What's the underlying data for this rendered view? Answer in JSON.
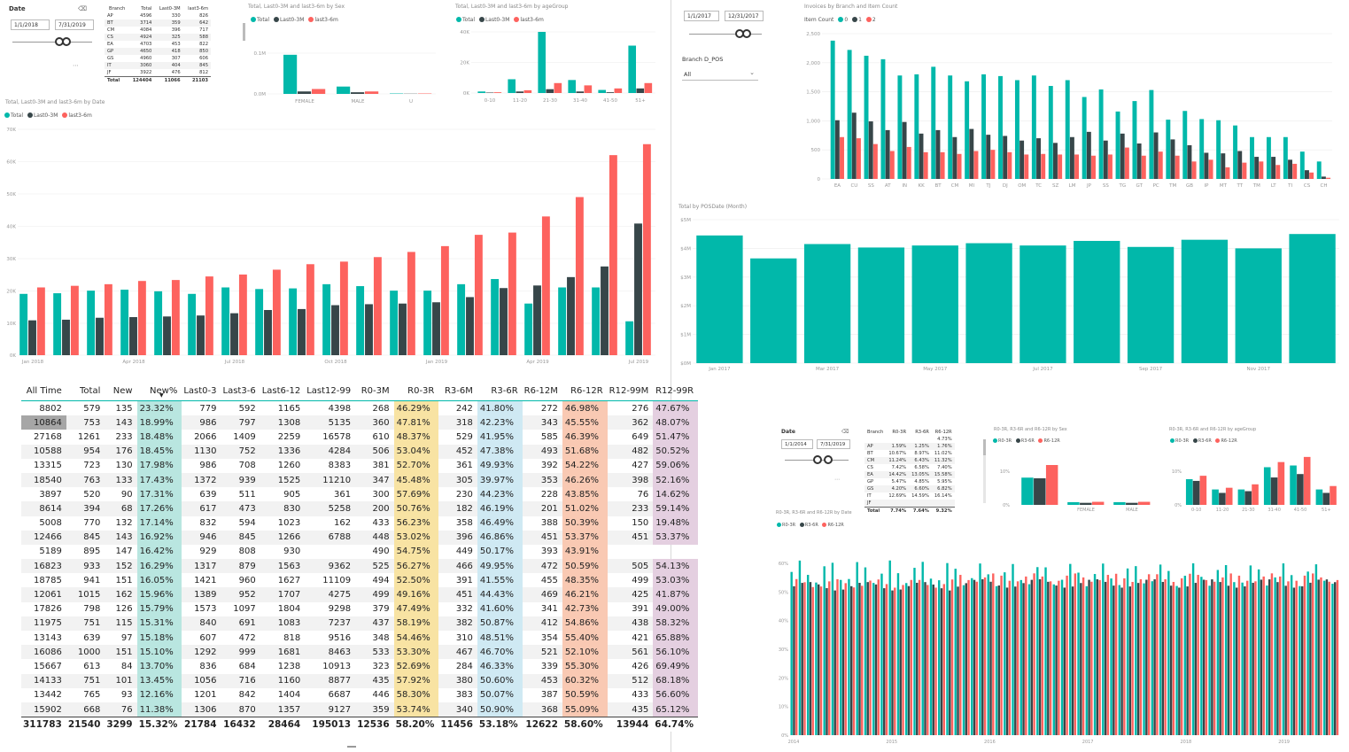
{
  "colors": {
    "total": "#01B8AA",
    "last03": "#374649",
    "last36": "#FD625E",
    "green": "#b9e6e0",
    "yellow": "#f8e3a3",
    "blue": "#cfe9f3",
    "orange": "#f9c9b3",
    "purple": "#e4cfe0"
  },
  "slicer1": {
    "title": "Date",
    "start": "1/1/2018",
    "end": "7/31/2019"
  },
  "branch_table": {
    "headers": [
      "Branch",
      "Total",
      "Last0-3M",
      "last3-6m"
    ],
    "rows": [
      [
        "AP",
        "4596",
        "330",
        "826"
      ],
      [
        "BT",
        "3714",
        "359",
        "642"
      ],
      [
        "CM",
        "4084",
        "396",
        "717"
      ],
      [
        "CS",
        "4924",
        "325",
        "588"
      ],
      [
        "EA",
        "4703",
        "453",
        "822"
      ],
      [
        "GP",
        "4650",
        "418",
        "850"
      ],
      [
        "GS",
        "4960",
        "307",
        "606"
      ],
      [
        "IT",
        "3060",
        "404",
        "845"
      ],
      [
        "JF",
        "3922",
        "476",
        "812"
      ]
    ],
    "total": [
      "Total",
      "124404",
      "11066",
      "21103"
    ]
  },
  "sex_chart": {
    "title": "Total, Last0-3M and last3-6m by Sex",
    "legend": [
      "Total",
      "Last0-3M",
      "last3-6m"
    ],
    "yticks": [
      "0.1M",
      "0.0M"
    ]
  },
  "age_chart": {
    "title": "Total, Last0-3M and last3-6m by ageGroup",
    "legend": [
      "Total",
      "Last0-3M",
      "last3-6m"
    ],
    "yticks": [
      "40K",
      "20K",
      "0K"
    ],
    "xticks": [
      "0-10",
      "11-20",
      "21-30",
      "31-40",
      "41-50",
      "51+"
    ]
  },
  "date_chart": {
    "title": "Total, Last0-3M and last3-6m by Date",
    "legend": [
      "Total",
      "Last0-3M",
      "last3-6m"
    ],
    "yticks": [
      "70K",
      "60K",
      "50K",
      "40K",
      "30K",
      "20K",
      "10K"
    ],
    "xticks": [
      "Jan 2018",
      "Apr 2018",
      "Jul 2018",
      "Oct 2018",
      "Jan 2019",
      "Apr 2019",
      "Jul 2019"
    ]
  },
  "slicer2": {
    "start": "1/1/2017",
    "end": "12/31/2017",
    "branch_label": "Branch D_POS",
    "branch_value": "All"
  },
  "invoice_chart": {
    "title": "Invoices by Branch and Item Count",
    "legend_label": "Item Count",
    "legend": [
      "0",
      "1",
      "2"
    ],
    "yticks": [
      "2,500",
      "2,000",
      "1,500",
      "1,000",
      "500",
      "0"
    ],
    "xticks": [
      "EA",
      "CU",
      "SS",
      "AT",
      "IN",
      "KK",
      "BT",
      "CM",
      "MI",
      "TJ",
      "DJ",
      "OM",
      "TC",
      "SZ",
      "LM",
      "JP",
      "SS",
      "TG",
      "GT",
      "PC",
      "TM",
      "GB",
      "IP",
      "MT",
      "TT",
      "TM",
      "LT",
      "TI",
      "CS",
      "CH"
    ]
  },
  "posdate_chart": {
    "title": "Total by POSDate (Month)",
    "yticks": [
      "$5M",
      "$4M",
      "$3M",
      "$2M",
      "$1M",
      "$0M"
    ],
    "xticks": [
      "Jan 2017",
      "Mar 2017",
      "May 2017",
      "Jul 2017",
      "Sep 2017",
      "Nov 2017"
    ]
  },
  "big_table": {
    "headers": [
      "All Time",
      "Total",
      "New",
      "New%",
      "Last0-3",
      "Last3-6",
      "Last6-12",
      "Last12-99",
      "R0-3M",
      "R0-3R",
      "R3-6M",
      "R3-6R",
      "R6-12M",
      "R6-12R",
      "R12-99M",
      "R12-99R"
    ],
    "rows": [
      [
        "8802",
        "579",
        "135",
        "23.32%",
        "779",
        "592",
        "1165",
        "4398",
        "268",
        "46.29%",
        "242",
        "41.80%",
        "272",
        "46.98%",
        "276",
        "47.67%"
      ],
      [
        "10864",
        "753",
        "143",
        "18.99%",
        "986",
        "797",
        "1308",
        "5135",
        "360",
        "47.81%",
        "318",
        "42.23%",
        "343",
        "45.55%",
        "362",
        "48.07%"
      ],
      [
        "27168",
        "1261",
        "233",
        "18.48%",
        "2066",
        "1409",
        "2259",
        "16578",
        "610",
        "48.37%",
        "529",
        "41.95%",
        "585",
        "46.39%",
        "649",
        "51.47%"
      ],
      [
        "10588",
        "954",
        "176",
        "18.45%",
        "1130",
        "752",
        "1336",
        "4284",
        "506",
        "53.04%",
        "452",
        "47.38%",
        "493",
        "51.68%",
        "482",
        "50.52%"
      ],
      [
        "13315",
        "723",
        "130",
        "17.98%",
        "986",
        "708",
        "1260",
        "8383",
        "381",
        "52.70%",
        "361",
        "49.93%",
        "392",
        "54.22%",
        "427",
        "59.06%"
      ],
      [
        "18540",
        "763",
        "133",
        "17.43%",
        "1372",
        "939",
        "1525",
        "11210",
        "347",
        "45.48%",
        "305",
        "39.97%",
        "353",
        "46.26%",
        "398",
        "52.16%"
      ],
      [
        "3897",
        "520",
        "90",
        "17.31%",
        "639",
        "511",
        "905",
        "361",
        "300",
        "57.69%",
        "230",
        "44.23%",
        "228",
        "43.85%",
        "76",
        "14.62%"
      ],
      [
        "8614",
        "394",
        "68",
        "17.26%",
        "617",
        "473",
        "830",
        "5258",
        "200",
        "50.76%",
        "182",
        "46.19%",
        "201",
        "51.02%",
        "233",
        "59.14%"
      ],
      [
        "5008",
        "770",
        "132",
        "17.14%",
        "832",
        "594",
        "1023",
        "162",
        "433",
        "56.23%",
        "358",
        "46.49%",
        "388",
        "50.39%",
        "150",
        "19.48%"
      ],
      [
        "12466",
        "845",
        "143",
        "16.92%",
        "946",
        "845",
        "1266",
        "6788",
        "448",
        "53.02%",
        "396",
        "46.86%",
        "451",
        "53.37%",
        "451",
        "53.37%"
      ],
      [
        "5189",
        "895",
        "147",
        "16.42%",
        "929",
        "808",
        "930",
        "",
        "490",
        "54.75%",
        "449",
        "50.17%",
        "393",
        "43.91%",
        "",
        ""
      ],
      [
        "16823",
        "933",
        "152",
        "16.29%",
        "1317",
        "879",
        "1563",
        "9362",
        "525",
        "56.27%",
        "466",
        "49.95%",
        "472",
        "50.59%",
        "505",
        "54.13%"
      ],
      [
        "18785",
        "941",
        "151",
        "16.05%",
        "1421",
        "960",
        "1627",
        "11109",
        "494",
        "52.50%",
        "391",
        "41.55%",
        "455",
        "48.35%",
        "499",
        "53.03%"
      ],
      [
        "12061",
        "1015",
        "162",
        "15.96%",
        "1389",
        "952",
        "1707",
        "4275",
        "499",
        "49.16%",
        "451",
        "44.43%",
        "469",
        "46.21%",
        "425",
        "41.87%"
      ],
      [
        "17826",
        "798",
        "126",
        "15.79%",
        "1573",
        "1097",
        "1804",
        "9298",
        "379",
        "47.49%",
        "332",
        "41.60%",
        "341",
        "42.73%",
        "391",
        "49.00%"
      ],
      [
        "11975",
        "751",
        "115",
        "15.31%",
        "840",
        "691",
        "1083",
        "7237",
        "437",
        "58.19%",
        "382",
        "50.87%",
        "412",
        "54.86%",
        "438",
        "58.32%"
      ],
      [
        "13143",
        "639",
        "97",
        "15.18%",
        "607",
        "472",
        "818",
        "9516",
        "348",
        "54.46%",
        "310",
        "48.51%",
        "354",
        "55.40%",
        "421",
        "65.88%"
      ],
      [
        "16086",
        "1000",
        "151",
        "15.10%",
        "1292",
        "999",
        "1681",
        "8463",
        "533",
        "53.30%",
        "467",
        "46.70%",
        "521",
        "52.10%",
        "561",
        "56.10%"
      ],
      [
        "15667",
        "613",
        "84",
        "13.70%",
        "836",
        "684",
        "1238",
        "10913",
        "323",
        "52.69%",
        "284",
        "46.33%",
        "339",
        "55.30%",
        "426",
        "69.49%"
      ],
      [
        "14133",
        "751",
        "101",
        "13.45%",
        "1056",
        "716",
        "1160",
        "8877",
        "435",
        "57.92%",
        "380",
        "50.60%",
        "453",
        "60.32%",
        "512",
        "68.18%"
      ],
      [
        "13442",
        "765",
        "93",
        "12.16%",
        "1201",
        "842",
        "1404",
        "6687",
        "446",
        "58.30%",
        "383",
        "50.07%",
        "387",
        "50.59%",
        "433",
        "56.60%"
      ],
      [
        "15902",
        "668",
        "76",
        "11.38%",
        "1306",
        "870",
        "1357",
        "9127",
        "359",
        "53.74%",
        "340",
        "50.90%",
        "368",
        "55.09%",
        "435",
        "65.12%"
      ]
    ],
    "total": [
      "311783",
      "21540",
      "3299",
      "15.32%",
      "21784",
      "16432",
      "28464",
      "195013",
      "12536",
      "58.20%",
      "11456",
      "53.18%",
      "12622",
      "58.60%",
      "13944",
      "64.74%"
    ]
  },
  "slicer3": {
    "title": "Date",
    "start": "1/1/2014",
    "end": "7/31/2019"
  },
  "rate_table": {
    "headers": [
      "Branch",
      "R0-3R",
      "R3-6R",
      "R6-12R"
    ],
    "rows": [
      [
        "",
        "",
        "",
        "4.73%"
      ],
      [
        "AP",
        "1.59%",
        "1.25%",
        "1.76%"
      ],
      [
        "BT",
        "10.67%",
        "8.97%",
        "11.02%"
      ],
      [
        "CM",
        "11.24%",
        "6.43%",
        "11.32%"
      ],
      [
        "CS",
        "7.42%",
        "6.58%",
        "7.40%"
      ],
      [
        "EA",
        "14.42%",
        "13.05%",
        "15.58%"
      ],
      [
        "GP",
        "5.47%",
        "4.85%",
        "5.95%"
      ],
      [
        "GS",
        "4.20%",
        "6.60%",
        "6.82%"
      ],
      [
        "IT",
        "12.69%",
        "14.59%",
        "16.14%"
      ],
      [
        "JF",
        "",
        "",
        ""
      ]
    ],
    "total": [
      "Total",
      "7.74%",
      "7.64%",
      "9.32%"
    ]
  },
  "rsex_chart": {
    "title": "R0-3R, R3-6R and R6-12R by Sex",
    "legend": [
      "R0-3R",
      "R3-6R",
      "R6-12R"
    ],
    "yticks": [
      "10%",
      "0%"
    ],
    "xticks": [
      "",
      "FEMALE",
      "MALE"
    ]
  },
  "rage_chart": {
    "title": "R0-3R, R3-6R and R6-12R by ageGroup",
    "legend": [
      "R0-3R",
      "R3-6R",
      "R6-12R"
    ],
    "yticks": [
      "10%",
      "0%"
    ],
    "xticks": [
      "0-10",
      "11-20",
      "21-30",
      "31-40",
      "41-50",
      "51+"
    ]
  },
  "rdate_chart": {
    "title": "R0-3R, R3-6R and R6-12R by Date",
    "legend": [
      "R0-3R",
      "R3-6R",
      "R6-12R"
    ],
    "yticks": [
      "60%",
      "50%",
      "40%",
      "30%",
      "20%",
      "10%",
      "0%"
    ],
    "xticks": [
      "2014",
      "2015",
      "2016",
      "2017",
      "2018",
      "2019"
    ]
  },
  "chart_data": [
    {
      "type": "bar",
      "title": "Total, Last0-3M and last3-6m by Date",
      "categories": [
        "2018-01",
        "2018-02",
        "2018-03",
        "2018-04",
        "2018-05",
        "2018-06",
        "2018-07",
        "2018-08",
        "2018-09",
        "2018-10",
        "2018-11",
        "2018-12",
        "2019-01",
        "2019-02",
        "2019-03",
        "2019-04",
        "2019-05",
        "2019-06",
        "2019-07"
      ],
      "series": [
        {
          "name": "Total",
          "values": [
            19000,
            19200,
            20000,
            20300,
            19800,
            19000,
            21000,
            20500,
            20700,
            22000,
            21400,
            20000,
            20000,
            22000,
            23600,
            16000,
            21000,
            21000,
            10500
          ]
        },
        {
          "name": "Last0-3M",
          "values": [
            10800,
            11000,
            11600,
            11800,
            12000,
            12300,
            13000,
            14000,
            14300,
            15500,
            15800,
            16000,
            16400,
            18000,
            20800,
            21600,
            24200,
            27500,
            40800
          ]
        },
        {
          "name": "last3-6m",
          "values": [
            21000,
            21500,
            22000,
            23000,
            23300,
            24400,
            25000,
            26500,
            28200,
            29000,
            30400,
            32000,
            33800,
            37300,
            38000,
            43000,
            49000,
            62000,
            65400
          ]
        }
      ],
      "ylim": [
        0,
        70000
      ]
    },
    {
      "type": "bar",
      "title": "Invoices by Branch and Item Count",
      "categories": [
        "EA",
        "CU",
        "SS",
        "AT",
        "IN",
        "KK",
        "BT",
        "CM",
        "MI",
        "TJ",
        "DJ",
        "OM",
        "TC",
        "SZ",
        "LM",
        "JP",
        "SS",
        "TG",
        "GT",
        "PC",
        "TM",
        "GB",
        "IP",
        "MT",
        "TT",
        "TM",
        "LT",
        "TI",
        "CS",
        "CH"
      ],
      "series": [
        {
          "name": "0",
          "values": [
            2380,
            2220,
            2120,
            2060,
            1780,
            1800,
            1930,
            1780,
            1680,
            1800,
            1770,
            1700,
            1780,
            1600,
            1700,
            1410,
            1540,
            1160,
            1340,
            1530,
            1020,
            1170,
            1030,
            1010,
            920,
            720,
            720,
            720,
            470,
            300
          ]
        },
        {
          "name": "1",
          "values": [
            1010,
            1140,
            990,
            840,
            980,
            780,
            840,
            720,
            860,
            760,
            740,
            660,
            700,
            620,
            720,
            810,
            660,
            780,
            610,
            800,
            680,
            580,
            450,
            440,
            480,
            380,
            380,
            330,
            150,
            40
          ]
        },
        {
          "name": "2",
          "values": [
            720,
            700,
            600,
            480,
            550,
            460,
            460,
            430,
            480,
            500,
            460,
            420,
            430,
            420,
            420,
            400,
            420,
            540,
            400,
            470,
            400,
            300,
            330,
            200,
            280,
            300,
            240,
            260,
            110,
            20
          ]
        }
      ],
      "ylim": [
        0,
        2500
      ]
    },
    {
      "type": "bar",
      "title": "Total by POSDate (Month)",
      "categories": [
        "Jan 2017",
        "Feb 2017",
        "Mar 2017",
        "Apr 2017",
        "May 2017",
        "Jun 2017",
        "Jul 2017",
        "Aug 2017",
        "Sep 2017",
        "Oct 2017",
        "Nov 2017",
        "Dec 2017"
      ],
      "values": [
        4.45,
        3.65,
        4.15,
        4.03,
        4.1,
        4.18,
        4.1,
        4.26,
        4.05,
        4.3,
        4.0,
        4.5
      ],
      "ylim": [
        0,
        5
      ]
    }
  ]
}
